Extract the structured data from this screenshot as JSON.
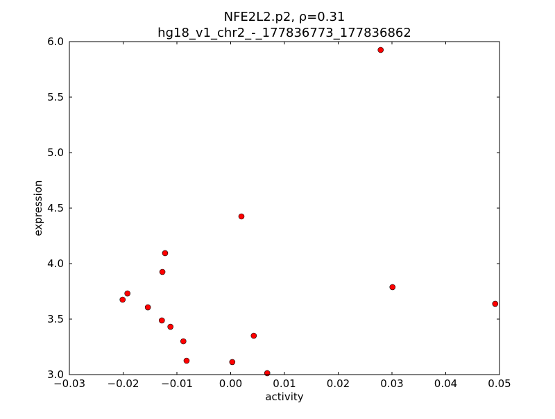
{
  "chart_data": {
    "type": "scatter",
    "title_line1": "NFE2L2.p2, ρ=0.31",
    "title_line2": "hg18_v1_chr2_-_177836773_177836862",
    "xlabel": "activity",
    "ylabel": "expression",
    "xlim": [
      -0.03,
      0.05
    ],
    "ylim": [
      3.0,
      6.0
    ],
    "xticks": [
      -0.03,
      -0.02,
      -0.01,
      0.0,
      0.01,
      0.02,
      0.03,
      0.04,
      0.05
    ],
    "xtick_labels": [
      "−0.03",
      "−0.02",
      "−0.01",
      "0.00",
      "0.01",
      "0.02",
      "0.03",
      "0.04",
      "0.05"
    ],
    "yticks": [
      3.0,
      3.5,
      4.0,
      4.5,
      5.0,
      5.5,
      6.0
    ],
    "ytick_labels": [
      "3.0",
      "3.5",
      "4.0",
      "4.5",
      "5.0",
      "5.5",
      "6.0"
    ],
    "grid": false,
    "marker_color": "#ff0000",
    "points": [
      {
        "x": 0.0279,
        "y": 5.925
      },
      {
        "x": 0.002,
        "y": 4.425
      },
      {
        "x": -0.0122,
        "y": 4.094
      },
      {
        "x": -0.0127,
        "y": 3.925
      },
      {
        "x": -0.0192,
        "y": 3.731
      },
      {
        "x": -0.0201,
        "y": 3.675
      },
      {
        "x": -0.0154,
        "y": 3.606
      },
      {
        "x": -0.0128,
        "y": 3.488
      },
      {
        "x": -0.0112,
        "y": 3.431
      },
      {
        "x": -0.0088,
        "y": 3.3
      },
      {
        "x": -0.0082,
        "y": 3.125
      },
      {
        "x": 0.0003,
        "y": 3.113
      },
      {
        "x": 0.0043,
        "y": 3.35
      },
      {
        "x": 0.0068,
        "y": 3.013
      },
      {
        "x": 0.0301,
        "y": 3.788
      },
      {
        "x": 0.0492,
        "y": 3.638
      }
    ]
  }
}
